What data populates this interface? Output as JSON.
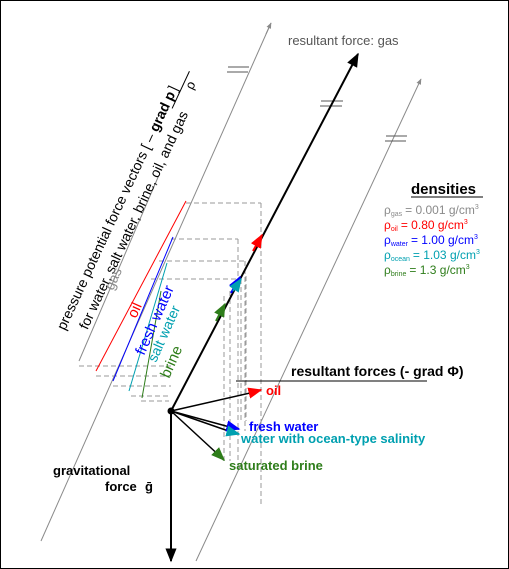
{
  "diagram": {
    "title_resultant_gas": "resultant force: gas",
    "axis_label_line1": "pressure potential force vectors [ –",
    "axis_label_grad": "grad p",
    "axis_label_rho": "ρ",
    "axis_label_close": "]",
    "axis_label_line2": "for water, salt water, brine, oil, and gas",
    "fluids_gas": "gas",
    "fluids_oil": "oil",
    "fluids_fresh_water": "fresh water",
    "fluids_salt_water": "salt water",
    "fluids_brine": "brine",
    "densities_heading": "densities",
    "densities": [
      {
        "symbol": "ρ",
        "sub": "gas",
        "value": "= 0.001 g/cm",
        "sup": "3",
        "color": "#8a8a8a"
      },
      {
        "symbol": "ρ",
        "sub": "oil",
        "value": "= 0.80 g/cm",
        "sup": "3",
        "color": "#ff0000"
      },
      {
        "symbol": "ρ",
        "sub": "water",
        "value": "= 1.00 g/cm",
        "sup": "3",
        "color": "#0000ff"
      },
      {
        "symbol": "ρ",
        "sub": "ocean",
        "value": "= 1.03 g/cm",
        "sup": "3",
        "color": "#00a0b0"
      },
      {
        "symbol": "ρ",
        "sub": "brine",
        "value": "= 1.3 g/cm",
        "sup": "3",
        "color": "#2e7d1a"
      }
    ],
    "resultant_forces_label": "resultant forces (- grad Φ)",
    "result_oil": "oil",
    "result_fresh_water": "fresh water",
    "result_ocean_water": "water with ocean-type salinity",
    "result_brine": "saturated brine",
    "gravity_line1": "gravitational",
    "gravity_line2": "force",
    "gravity_symbol": "ḡ",
    "colors": {
      "gas": "#8a8a8a",
      "oil": "#ff0000",
      "fresh_water": "#0000ff",
      "salt_water": "#00a0b0",
      "brine": "#2e7d1a"
    }
  }
}
